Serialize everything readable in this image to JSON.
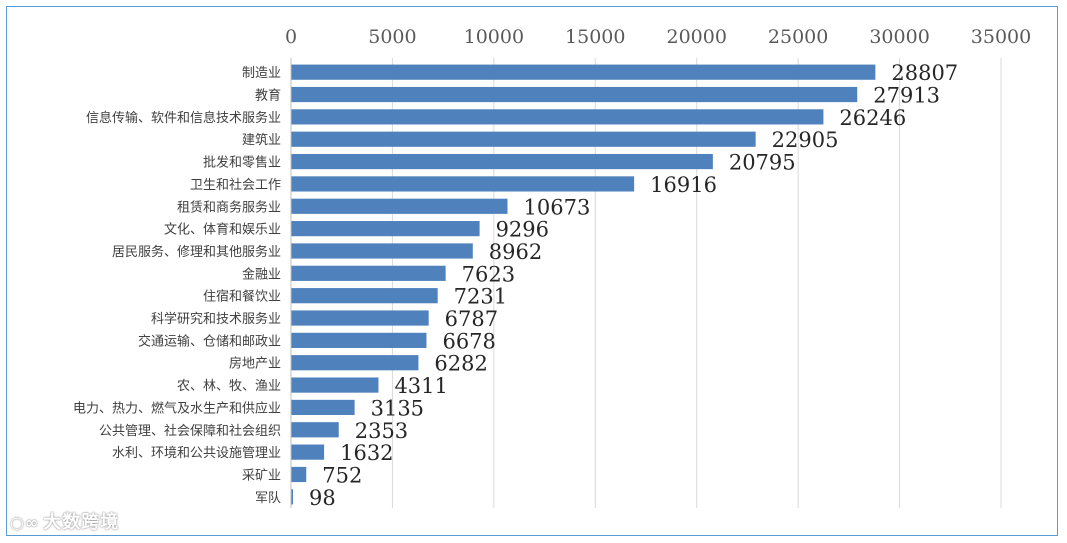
{
  "chart_data": {
    "type": "bar",
    "orientation": "horizontal",
    "title": "",
    "xlabel": "",
    "ylabel": "",
    "xlim": [
      0,
      35000
    ],
    "x_ticks": [
      "0",
      "5000",
      "10000",
      "15000",
      "20000",
      "25000",
      "30000",
      "35000"
    ],
    "grid": true,
    "legend": "none",
    "bar_color": "#4f81bd",
    "categories": [
      "制造业",
      "教育",
      "信息传输、软件和信息技术服务业",
      "建筑业",
      "批发和零售业",
      "卫生和社会工作",
      "租赁和商务服务业",
      "文化、体育和娱乐业",
      "居民服务、修理和其他服务业",
      "金融业",
      "住宿和餐饮业",
      "科学研究和技术服务业",
      "交通运输、仓储和邮政业",
      "房地产业",
      "农、林、牧、渔业",
      "电力、热力、燃气及水生产和供应业",
      "公共管理、社会保障和社会组织",
      "水利、环境和公共设施管理业",
      "采矿业",
      "军队"
    ],
    "values": [
      28807,
      27913,
      26246,
      22905,
      20795,
      16916,
      10673,
      9296,
      8962,
      7623,
      7231,
      6787,
      6678,
      6282,
      4311,
      3135,
      2353,
      1632,
      752,
      98
    ]
  },
  "watermark": {
    "icon": "weibo-icon",
    "text": "大数跨境"
  }
}
